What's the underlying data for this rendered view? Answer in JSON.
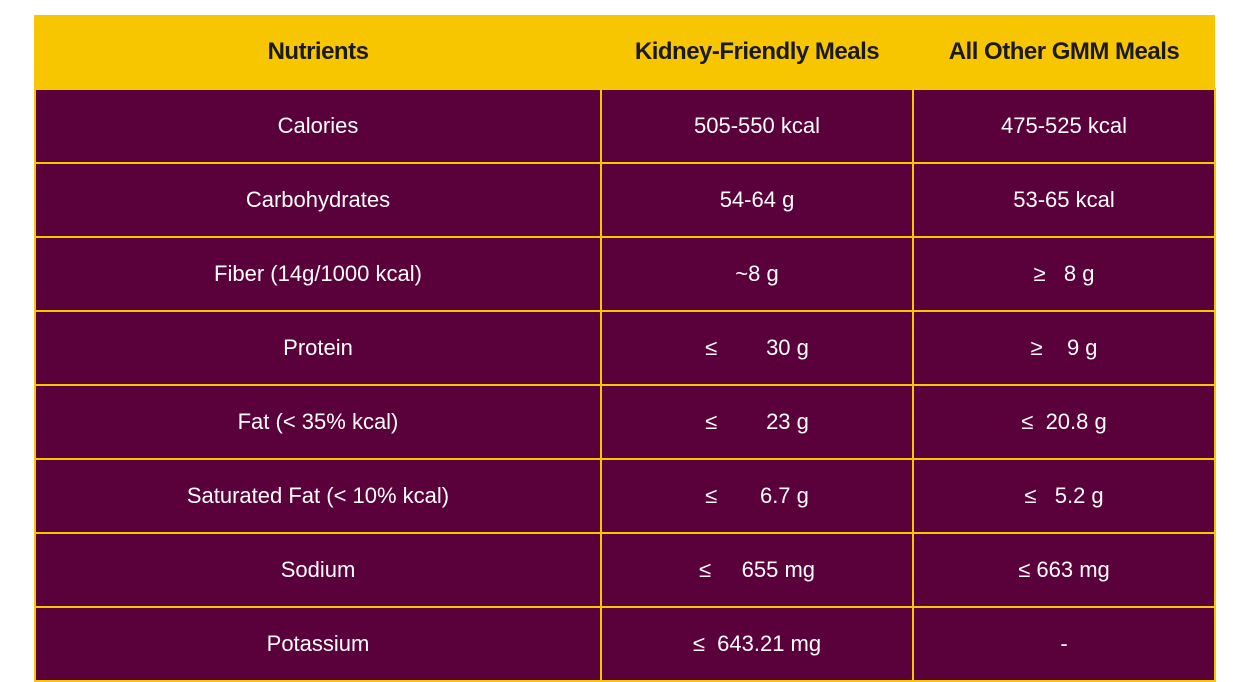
{
  "chart_data": {
    "type": "table",
    "columns": [
      "Nutrients",
      "Kidney-Friendly Meals",
      "All Other GMM Meals"
    ],
    "rows": [
      [
        "Calories",
        "505-550 kcal",
        "475-525 kcal"
      ],
      [
        "Carbohydrates",
        "54-64 g",
        "53-65 kcal"
      ],
      [
        "Fiber (14g/1000 kcal)",
        "~8 g",
        "≥   8 g"
      ],
      [
        "Protein",
        "≤        30 g",
        "≥    9 g"
      ],
      [
        "Fat (< 35% kcal)",
        "≤        23 g",
        "≤  20.8 g"
      ],
      [
        "Saturated Fat (< 10% kcal)",
        "≤       6.7 g",
        "≤   5.2 g"
      ],
      [
        "Sodium",
        "≤     655 mg",
        "≤ 663 mg"
      ],
      [
        "Potassium",
        "≤  643.21 mg",
        "-"
      ]
    ]
  },
  "colors": {
    "header_bg": "#F7C600",
    "row_bg": "#5A003A",
    "border": "#F7C600",
    "text": "#FFFFFF"
  }
}
